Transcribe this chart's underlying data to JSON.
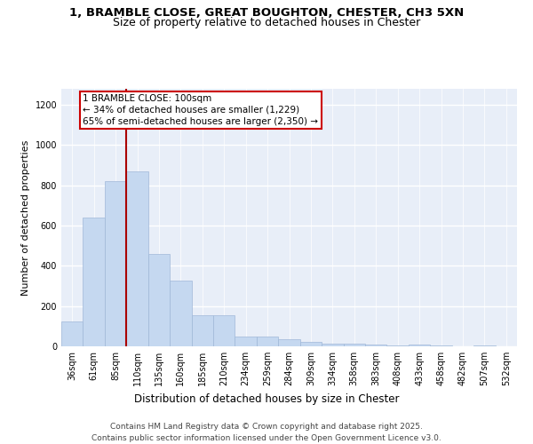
{
  "title": "1, BRAMBLE CLOSE, GREAT BOUGHTON, CHESTER, CH3 5XN",
  "subtitle": "Size of property relative to detached houses in Chester",
  "xlabel": "Distribution of detached houses by size in Chester",
  "ylabel": "Number of detached properties",
  "categories": [
    "36sqm",
    "61sqm",
    "85sqm",
    "110sqm",
    "135sqm",
    "160sqm",
    "185sqm",
    "210sqm",
    "234sqm",
    "259sqm",
    "284sqm",
    "309sqm",
    "334sqm",
    "358sqm",
    "383sqm",
    "408sqm",
    "433sqm",
    "458sqm",
    "482sqm",
    "507sqm",
    "532sqm"
  ],
  "values": [
    125,
    640,
    820,
    870,
    460,
    325,
    155,
    155,
    50,
    50,
    35,
    20,
    15,
    15,
    8,
    5,
    10,
    3,
    2,
    5,
    1
  ],
  "bar_color": "#c5d8f0",
  "bar_edge_color": "#a0b8d8",
  "vline_x": 2.5,
  "vline_color": "#aa0000",
  "annotation_text": "1 BRAMBLE CLOSE: 100sqm\n← 34% of detached houses are smaller (1,229)\n65% of semi-detached houses are larger (2,350) →",
  "annotation_box_color": "#ffffff",
  "annotation_box_edge_color": "#cc0000",
  "ylim": [
    0,
    1280
  ],
  "yticks": [
    0,
    200,
    400,
    600,
    800,
    1000,
    1200
  ],
  "bg_color": "#e8eef8",
  "grid_color": "#ffffff",
  "footer": "Contains HM Land Registry data © Crown copyright and database right 2025.\nContains public sector information licensed under the Open Government Licence v3.0.",
  "title_fontsize": 9.5,
  "subtitle_fontsize": 9,
  "xlabel_fontsize": 8.5,
  "ylabel_fontsize": 8,
  "tick_fontsize": 7,
  "annotation_fontsize": 7.5,
  "footer_fontsize": 6.5
}
